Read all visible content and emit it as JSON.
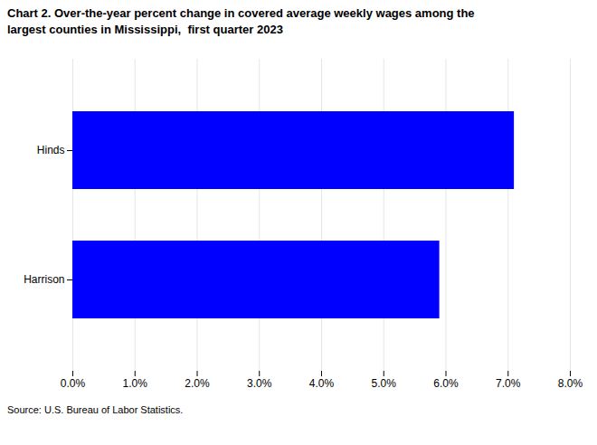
{
  "chart_data": {
    "type": "bar",
    "orientation": "horizontal",
    "title": "Chart 2. Over-the-year percent change in covered average weekly wages among the\nlargest counties in Mississippi,  first quarter 2023",
    "source": "Source: U.S. Bureau of Labor Statistics.",
    "categories": [
      "Harrison",
      "Hinds"
    ],
    "values": [
      0.059,
      0.071
    ],
    "color": "#0000FF",
    "xlim": [
      0,
      0.08
    ],
    "xticks": [
      {
        "value": 0.0,
        "label": "0.0%"
      },
      {
        "value": 0.01,
        "label": "1.0%"
      },
      {
        "value": 0.02,
        "label": "2.0%"
      },
      {
        "value": 0.03,
        "label": "3.0%"
      },
      {
        "value": 0.04,
        "label": "4.0%"
      },
      {
        "value": 0.05,
        "label": "5.0%"
      },
      {
        "value": 0.06,
        "label": "6.0%"
      },
      {
        "value": 0.07,
        "label": "7.0%"
      },
      {
        "value": 0.08,
        "label": "8.0%"
      }
    ],
    "grid": true
  }
}
